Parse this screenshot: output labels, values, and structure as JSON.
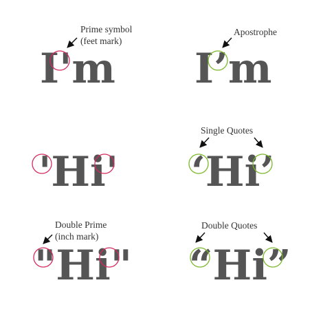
{
  "panels": {
    "im_prime": {
      "word": "I'm",
      "caption_line1": "Prime symbol",
      "caption_line2": "(feet mark)"
    },
    "im_apostrophe": {
      "word": "I’m",
      "caption": "Apostrophe"
    },
    "hi_prime": {
      "word": "'Hi'"
    },
    "hi_single": {
      "word": "‘Hi’",
      "caption": "Single Quotes"
    },
    "hi_double_prime": {
      "word": "\"Hi\"",
      "caption_line1": "Double Prime",
      "caption_line2": "(inch mark)"
    },
    "hi_double": {
      "word": "“Hi”",
      "caption": "Double Quotes"
    }
  },
  "colors": {
    "incorrect_circle": "#d4285c",
    "correct_circle": "#78b828",
    "text": "#555555",
    "arrow": "#111111"
  },
  "icons": {
    "pointer": "arrow-icon",
    "highlight": "circle-highlight-icon"
  }
}
